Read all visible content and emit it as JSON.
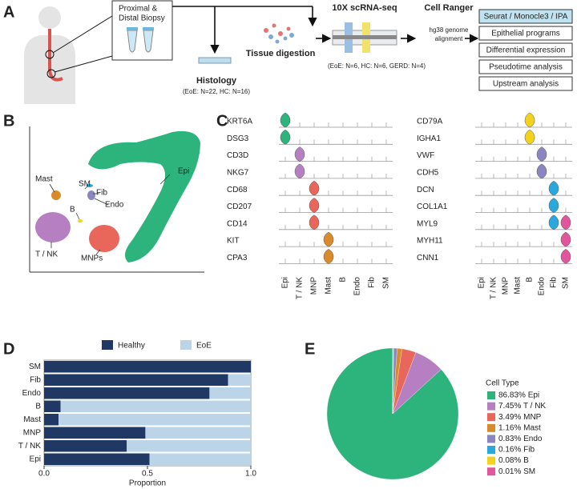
{
  "panel_labels": [
    "A",
    "B",
    "C",
    "D",
    "E"
  ],
  "workflow": {
    "biopsy": [
      "Proximal &",
      "Distal Biopsy"
    ],
    "histology": "Histology",
    "histology_n": "(EoE: N=22, HC: N=16)",
    "digestion": "Tissue digestion",
    "scrnaseq": "10X scRNA-seq",
    "scrnaseq_n": "(EoE: N=6, HC: N=6, GERD: N=4)",
    "cellranger": "Cell Ranger",
    "alignment": [
      "hg38 genome",
      "alignment"
    ],
    "analyses": [
      "Seurat / Monocle3 / IPA",
      "Epithelial programs",
      "Differential expression",
      "Pseudotime analysis",
      "Upstream analysis"
    ]
  },
  "umap": {
    "clusters": [
      "Epi",
      "Mast",
      "SM",
      "Fib",
      "B",
      "Endo",
      "T / NK",
      "MNPs"
    ]
  },
  "violin": {
    "left_genes": [
      "KRT6A",
      "DSG3",
      "CD3D",
      "NKG7",
      "CD68",
      "CD207",
      "CD14",
      "KIT",
      "CPA3"
    ],
    "right_genes": [
      "CD79A",
      "IGHA1",
      "VWF",
      "CDH5",
      "DCN",
      "COL1A1",
      "MYL9",
      "MYH11",
      "CNN1"
    ],
    "cell_types": [
      "Epi",
      "T / NK",
      "MNP",
      "Mast",
      "B",
      "Endo",
      "Fib",
      "SM"
    ]
  },
  "chart_data": [
    {
      "type": "bar",
      "orientation": "horizontal",
      "stacked": true,
      "categories": [
        "SM",
        "Fib",
        "Endo",
        "B",
        "Mast",
        "MNP",
        "T / NK",
        "Epi"
      ],
      "series": [
        {
          "name": "Healthy",
          "color": "#1f3864",
          "values": [
            1.0,
            0.89,
            0.8,
            0.08,
            0.07,
            0.49,
            0.4,
            0.51
          ]
        },
        {
          "name": "EoE",
          "color": "#bcd4e8",
          "values": [
            0.0,
            0.11,
            0.2,
            0.92,
            0.93,
            0.51,
            0.6,
            0.49
          ]
        }
      ],
      "xlim": [
        0,
        1
      ],
      "xticks": [
        {
          "value": 0,
          "label": "0.0"
        },
        0.5,
        {
          "value": 1,
          "label": "1.0"
        }
      ],
      "xlabel": "Proportion",
      "legend": "top"
    },
    {
      "type": "pie",
      "legend_title": "Cell Type",
      "labels": [
        "86.83% Epi",
        "7.45% T / NK",
        "3.49% MNP",
        "1.16% Mast",
        "0.83% Endo",
        "0.16% Fib",
        "0.08% B",
        "0.01% SM"
      ],
      "values": [
        86.83,
        7.45,
        3.49,
        1.16,
        0.83,
        0.16,
        0.08,
        0.01
      ],
      "colors": [
        "#2db37c",
        "#b57fc1",
        "#e8665a",
        "#d98a2b",
        "#8c86c0",
        "#2aa7dc",
        "#f2d21b",
        "#e0559c"
      ],
      "start": "top",
      "direction": "counterclockwise",
      "legend": "right"
    }
  ]
}
